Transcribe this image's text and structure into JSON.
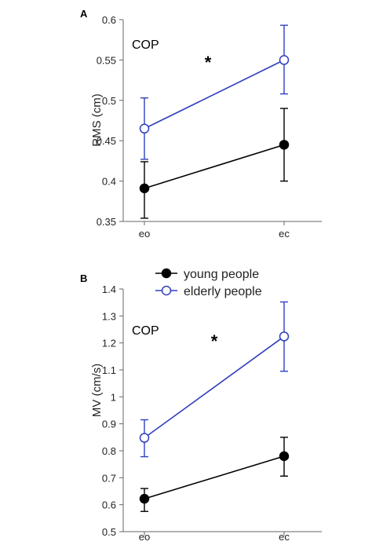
{
  "chart_data": [
    {
      "type": "line",
      "panel_label": "A",
      "ylabel": "RMS (cm)",
      "xlabel": "",
      "categories": [
        "eo",
        "ec"
      ],
      "ylim": [
        0.35,
        0.6
      ],
      "yticks": [
        "0.35",
        "0.4",
        "0.45",
        "0.5",
        "0.55",
        "0.6"
      ],
      "annotation": "COP",
      "significance": "*",
      "series": [
        {
          "name": "young people",
          "color": "#000000",
          "marker": "filled-circle",
          "values": [
            0.391,
            0.445
          ],
          "err_low": [
            0.354,
            0.4
          ],
          "err_high": [
            0.424,
            0.49
          ]
        },
        {
          "name": "elderly people",
          "color": "#2f3fbf",
          "marker": "open-circle",
          "values": [
            0.465,
            0.55
          ],
          "err_low": [
            0.427,
            0.508
          ],
          "err_high": [
            0.503,
            0.593
          ]
        }
      ]
    },
    {
      "type": "line",
      "panel_label": "B",
      "ylabel": "MV (cm/s)",
      "xlabel": "",
      "categories": [
        "eo",
        "ec"
      ],
      "ylim": [
        0.5,
        1.4
      ],
      "yticks": [
        "0.5",
        "0.6",
        "0.7",
        "0.8",
        "0.9",
        "1",
        "1.1",
        "1.2",
        "1.3",
        "1.4"
      ],
      "annotation": "COP",
      "significance": "*",
      "legend_position": "top-center",
      "series": [
        {
          "name": "young people",
          "color": "#000000",
          "marker": "filled-circle",
          "values": [
            0.622,
            0.78
          ],
          "err_low": [
            0.575,
            0.706
          ],
          "err_high": [
            0.66,
            0.85
          ]
        },
        {
          "name": "elderly people",
          "color": "#2f3fbf",
          "marker": "open-circle",
          "values": [
            0.848,
            1.224
          ],
          "err_low": [
            0.778,
            1.095
          ],
          "err_high": [
            0.915,
            1.352
          ]
        }
      ]
    }
  ]
}
